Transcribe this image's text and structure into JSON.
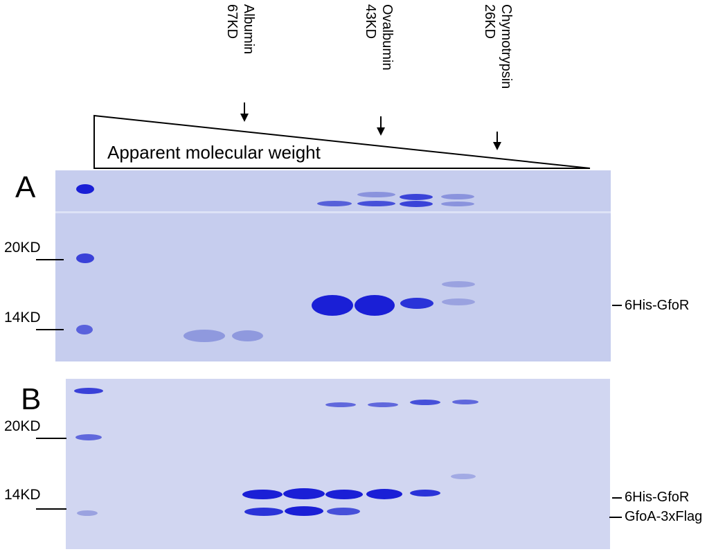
{
  "markers": {
    "albumin": {
      "name": "Albumin",
      "size": "67KD"
    },
    "ovalbumin": {
      "name": "Ovalbumin",
      "size": "43KD"
    },
    "chymotrypsin": {
      "name": "Chymotrypsin",
      "size": "26KD"
    }
  },
  "gradient_label": "Apparent molecular weight",
  "panels": {
    "a": {
      "letter": "A",
      "ladder": [
        "20KD",
        "14KD"
      ],
      "bands": [
        "6His-GfoR"
      ]
    },
    "b": {
      "letter": "B",
      "ladder": [
        "20KD",
        "14KD"
      ],
      "bands": [
        "6His-GfoR",
        "GfoA-3xFlag"
      ]
    }
  },
  "colors": {
    "gel_background": "#c6cdee",
    "band_strong": "#1a1fd6",
    "band_faint": "#8f99de"
  }
}
